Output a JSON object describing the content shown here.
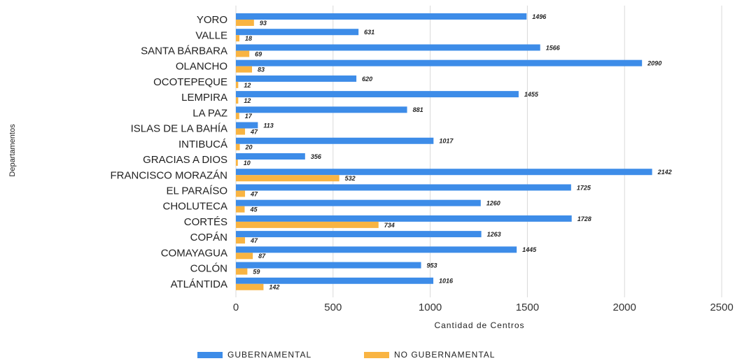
{
  "chart_data": {
    "type": "bar",
    "orientation": "horizontal",
    "x_label": "Cantidad de Centros",
    "y_label": "Departamentos",
    "categories": [
      "YORO",
      "VALLE",
      "SANTA BÁRBARA",
      "OLANCHO",
      "OCOTEPEQUE",
      "LEMPIRA",
      "LA PAZ",
      "ISLAS DE LA BAHÍA",
      "INTIBUCÁ",
      "GRACIAS A DIOS",
      "FRANCISCO MORAZÁN",
      "EL PARAÍSO",
      "CHOLUTECA",
      "CORTÉS",
      "COPÁN",
      "COMAYAGUA",
      "COLÓN",
      "ATLÁNTIDA"
    ],
    "series": [
      {
        "name": "GUBERNAMENTAL",
        "color": "#3d8ce8",
        "values": [
          1496,
          631,
          1566,
          2090,
          620,
          1455,
          881,
          113,
          1017,
          356,
          2142,
          1725,
          1260,
          1728,
          1263,
          1445,
          953,
          1016
        ]
      },
      {
        "name": "NO GUBERNAMENTAL",
        "color": "#f9b442",
        "values": [
          93,
          18,
          69,
          83,
          12,
          12,
          17,
          47,
          20,
          10,
          532,
          47,
          45,
          734,
          47,
          87,
          59,
          142
        ]
      }
    ],
    "xlim": [
      0,
      2500
    ],
    "xticks": [
      0,
      500,
      1000,
      1500,
      2000,
      2500
    ],
    "grid": true,
    "legend": "bottom"
  }
}
